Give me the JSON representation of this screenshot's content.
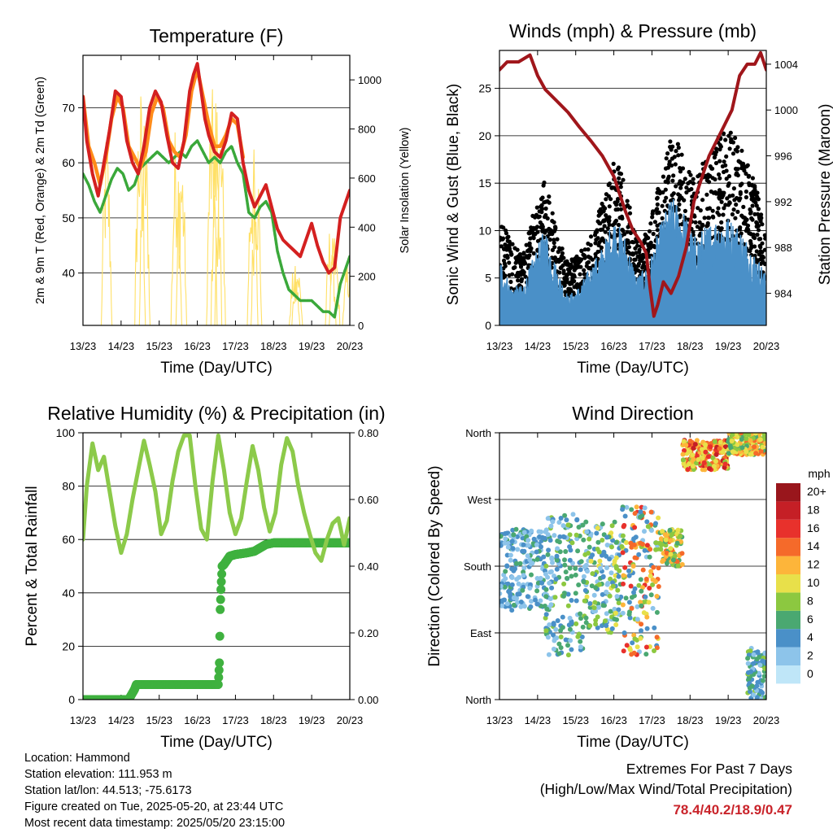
{
  "palette": {
    "t2m": "#d42020",
    "t9m": "#ff8c1a",
    "td": "#3aa83a",
    "solar": "#ffe066",
    "gust": "#000000",
    "wind": "#4a90c8",
    "pressure": "#a0161b",
    "rh": "#8cca4a",
    "precip": "#3fb13f"
  },
  "x_ticks": [
    "13/23",
    "14/23",
    "15/23",
    "16/23",
    "17/23",
    "18/23",
    "19/23",
    "20/23"
  ],
  "x_label": "Time (Day/UTC)",
  "chart_data": [
    {
      "type": "line",
      "id": "temperature",
      "title": "Temperature (F)",
      "xlabel": "Time (Day/UTC)",
      "ylabel": "2m & 9m T (Red, Orange) & 2m Td (Green)",
      "y2label": "Solar Insolation (Yellow)",
      "xlim": [
        0,
        7
      ],
      "ylim": [
        30.5,
        79.5
      ],
      "y2lim": [
        0,
        1100
      ],
      "yticks": [
        40,
        50,
        60,
        70
      ],
      "y2ticks": [
        0,
        200,
        400,
        600,
        800,
        1000
      ],
      "grid": true,
      "series": [
        {
          "name": "2m T",
          "color": "#d42020",
          "x": [
            0,
            0.1,
            0.25,
            0.4,
            0.55,
            0.7,
            0.85,
            1.0,
            1.15,
            1.3,
            1.45,
            1.6,
            1.75,
            1.9,
            2.05,
            2.2,
            2.35,
            2.5,
            2.65,
            2.8,
            2.9,
            3.0,
            3.1,
            3.2,
            3.3,
            3.45,
            3.6,
            3.75,
            3.9,
            4.05,
            4.2,
            4.35,
            4.5,
            4.65,
            4.8,
            4.95,
            5.1,
            5.25,
            5.4,
            5.55,
            5.7,
            5.85,
            6.0,
            6.15,
            6.3,
            6.45,
            6.6,
            6.75,
            6.9,
            7.0
          ],
          "y": [
            72,
            64,
            58,
            54,
            60,
            66,
            73,
            72,
            64,
            60,
            58,
            63,
            70,
            73,
            71,
            65,
            60,
            59,
            64,
            73,
            76,
            78,
            73,
            68,
            65,
            62,
            61,
            64,
            69,
            68,
            60,
            55,
            52,
            54,
            56,
            52,
            48,
            46,
            45,
            44,
            43,
            46,
            49,
            45,
            42,
            40,
            41,
            50,
            53,
            55
          ]
        },
        {
          "name": "9m T",
          "color": "#ff8c1a",
          "x": [
            0,
            0.15,
            0.3,
            0.45,
            0.6,
            0.75,
            0.9,
            1.05,
            1.2,
            1.35,
            1.5,
            1.65,
            1.8,
            1.95,
            2.1,
            2.25,
            2.4,
            2.55,
            2.7,
            2.85,
            3.0,
            3.15,
            3.3,
            3.45,
            3.6,
            3.75,
            3.9,
            4.05,
            4.2
          ],
          "y": [
            72,
            63,
            60,
            56,
            61,
            68,
            72,
            70,
            63,
            61,
            59,
            62,
            69,
            72,
            70,
            64,
            62,
            61,
            65,
            73,
            77,
            72,
            67,
            63,
            63,
            65,
            68,
            67,
            61
          ]
        },
        {
          "name": "2m Td",
          "color": "#3aa83a",
          "x": [
            0,
            0.15,
            0.3,
            0.45,
            0.6,
            0.75,
            0.9,
            1.05,
            1.2,
            1.35,
            1.5,
            1.65,
            1.8,
            1.95,
            2.1,
            2.25,
            2.4,
            2.55,
            2.7,
            2.85,
            3.0,
            3.15,
            3.3,
            3.45,
            3.6,
            3.75,
            3.9,
            4.05,
            4.2,
            4.35,
            4.5,
            4.65,
            4.8,
            4.95,
            5.1,
            5.25,
            5.4,
            5.55,
            5.7,
            5.85,
            6.0,
            6.15,
            6.3,
            6.45,
            6.6,
            6.75,
            6.9,
            7.0
          ],
          "y": [
            58,
            56,
            53,
            51,
            54,
            57,
            59,
            58,
            55,
            56,
            59,
            60,
            61,
            62,
            61,
            60,
            61,
            62,
            61,
            63,
            64,
            62,
            60,
            61,
            60,
            62,
            63,
            60,
            58,
            51,
            50,
            52,
            53,
            51,
            44,
            40,
            37,
            36,
            35,
            35,
            35,
            34,
            33,
            33,
            32,
            38,
            41,
            43
          ]
        },
        {
          "name": "Solar Insolation",
          "color": "#ffe066",
          "axis": "y2",
          "peaks_x": [
            0.62,
            1.5,
            1.62,
            2.45,
            2.58,
            3.38,
            3.5,
            3.6,
            4.45,
            4.55,
            5.55,
            5.62,
            6.5,
            6.6,
            6.95
          ],
          "peaks_y": [
            820,
            1000,
            900,
            870,
            780,
            980,
            1010,
            900,
            780,
            760,
            250,
            280,
            430,
            380,
            270
          ]
        }
      ]
    },
    {
      "type": "scatter",
      "id": "winds",
      "title": "Winds (mph) & Pressure (mb)",
      "xlabel": "Time (Day/UTC)",
      "ylabel": "Sonic Wind & Gust (Blue, Black)",
      "y2label": "Station Pressure (Maroon)",
      "xlim": [
        0,
        7
      ],
      "ylim": [
        0,
        29
      ],
      "y2lim": [
        981.2,
        1005.2
      ],
      "yticks": [
        0,
        5,
        10,
        15,
        20,
        25
      ],
      "y2ticks": [
        984,
        988,
        992,
        996,
        1000,
        1004
      ],
      "grid": true,
      "series": [
        {
          "name": "Gust",
          "color": "#000000",
          "envelope_x": [
            0,
            0.3,
            0.6,
            0.9,
            1.2,
            1.5,
            1.8,
            2.1,
            2.4,
            2.7,
            3.0,
            3.3,
            3.6,
            3.9,
            4.2,
            4.5,
            4.8,
            5.1,
            5.4,
            5.7,
            6.0,
            6.3,
            6.6,
            6.9,
            7.0
          ],
          "envelope_y": [
            12,
            8,
            7,
            11,
            14,
            9,
            6,
            7,
            9,
            12,
            16,
            14,
            8,
            9,
            14,
            18,
            17,
            14,
            16,
            18,
            19,
            18,
            15,
            11,
            9
          ]
        },
        {
          "name": "Sonic Wind",
          "color": "#4a90c8",
          "envelope_x": [
            0,
            0.3,
            0.6,
            0.9,
            1.2,
            1.5,
            1.8,
            2.1,
            2.4,
            2.7,
            3.0,
            3.3,
            3.6,
            3.9,
            4.2,
            4.5,
            4.8,
            5.1,
            5.4,
            5.7,
            6.0,
            6.3,
            6.6,
            6.9,
            7.0
          ],
          "envelope_y": [
            7,
            4,
            4,
            7,
            10,
            6,
            3,
            4,
            6,
            8,
            11,
            9,
            5,
            6,
            10,
            13,
            12,
            9,
            10,
            11,
            11,
            10,
            8,
            6,
            5
          ]
        },
        {
          "name": "Station Pressure",
          "color": "#a0161b",
          "axis": "y2",
          "x": [
            0,
            0.2,
            0.5,
            0.8,
            1.0,
            1.2,
            1.5,
            1.8,
            2.1,
            2.4,
            2.7,
            3.0,
            3.3,
            3.5,
            3.7,
            3.85,
            3.95,
            4.05,
            4.15,
            4.3,
            4.5,
            4.7,
            4.9,
            5.1,
            5.3,
            5.5,
            5.8,
            6.1,
            6.3,
            6.5,
            6.7,
            6.85,
            7.0
          ],
          "y": [
            1003.5,
            1004.2,
            1004.2,
            1004.8,
            1003,
            1001.8,
            1000.8,
            999.8,
            998.5,
            997.3,
            996,
            994.2,
            991.2,
            989.5,
            988.5,
            987.5,
            984.5,
            982,
            983,
            985,
            984,
            985.5,
            988,
            992,
            994,
            996,
            998,
            1000,
            1003,
            1004,
            1004,
            1005,
            1003.5
          ]
        }
      ]
    },
    {
      "type": "line",
      "id": "humidity",
      "title": "Relative Humidity (%) & Precipitation (in)",
      "xlabel": "Time (Day/UTC)",
      "ylabel": "Percent & Total Rainfall",
      "xlim": [
        0,
        7
      ],
      "ylim": [
        0,
        100
      ],
      "y2lim": [
        0,
        0.8
      ],
      "yticks": [
        0,
        20,
        40,
        60,
        80,
        100
      ],
      "y2ticks": [
        "0.00",
        "0.20",
        "0.40",
        "0.60",
        "0.80"
      ],
      "grid": true,
      "series": [
        {
          "name": "Relative Humidity",
          "color": "#8cca4a",
          "x": [
            0,
            0.1,
            0.25,
            0.4,
            0.55,
            0.7,
            0.85,
            1.0,
            1.15,
            1.3,
            1.45,
            1.6,
            1.75,
            1.9,
            2.05,
            2.2,
            2.35,
            2.5,
            2.65,
            2.8,
            2.95,
            3.1,
            3.25,
            3.4,
            3.55,
            3.7,
            3.85,
            4.0,
            4.15,
            4.3,
            4.45,
            4.6,
            4.75,
            4.9,
            5.05,
            5.2,
            5.35,
            5.5,
            5.65,
            5.8,
            5.95,
            6.1,
            6.25,
            6.4,
            6.55,
            6.7,
            6.85,
            7.0
          ],
          "y": [
            60,
            80,
            96,
            86,
            91,
            78,
            65,
            55,
            62,
            75,
            86,
            97,
            88,
            78,
            62,
            67,
            82,
            93,
            99,
            99,
            80,
            64,
            60,
            82,
            99,
            86,
            70,
            62,
            68,
            82,
            95,
            86,
            72,
            63,
            70,
            88,
            98,
            93,
            80,
            70,
            62,
            55,
            52,
            60,
            66,
            68,
            58,
            68
          ]
        },
        {
          "name": "Total Precipitation",
          "color": "#3fb13f",
          "axis": "y2",
          "x": [
            0,
            1.2,
            1.35,
            1.4,
            3.55,
            3.58,
            3.6,
            3.62,
            3.65,
            3.7,
            3.85,
            4.0,
            4.3,
            4.5,
            4.8,
            5.0,
            6.0,
            7.0
          ],
          "y": [
            0,
            0,
            0.03,
            0.045,
            0.045,
            0.11,
            0.27,
            0.33,
            0.4,
            0.405,
            0.43,
            0.435,
            0.44,
            0.445,
            0.465,
            0.47,
            0.47,
            0.47
          ]
        }
      ]
    },
    {
      "type": "scatter",
      "id": "wind_direction",
      "title": "Wind Direction",
      "xlabel": "Time (Day/UTC)",
      "ylabel": "Direction (Colored By Speed)",
      "xlim": [
        0,
        7
      ],
      "ylim": [
        0,
        360
      ],
      "yticks": [
        "North",
        "East",
        "South",
        "West",
        "North"
      ],
      "grid": true,
      "colorbar": {
        "title": "mph",
        "labels": [
          "0",
          "2",
          "4",
          "6",
          "8",
          "10",
          "12",
          "14",
          "16",
          "18",
          "20+"
        ],
        "colors": [
          "#bfe6f8",
          "#8dc4ea",
          "#4a90c8",
          "#4aa871",
          "#8cc840",
          "#e8e04a",
          "#fdb53a",
          "#f56a2a",
          "#e8312c",
          "#c51f26",
          "#99161c"
        ]
      },
      "clusters": [
        {
          "x": [
            0,
            1.2
          ],
          "dir": [
            120,
            230
          ],
          "speed": [
            1,
            6
          ]
        },
        {
          "x": [
            1.2,
            2.2
          ],
          "dir": [
            60,
            250
          ],
          "speed": [
            1,
            8
          ]
        },
        {
          "x": [
            2.2,
            3.2
          ],
          "dir": [
            90,
            240
          ],
          "speed": [
            1,
            10
          ]
        },
        {
          "x": [
            3.2,
            4.2
          ],
          "dir": [
            60,
            260
          ],
          "speed": [
            2,
            17
          ]
        },
        {
          "x": [
            4.2,
            4.8
          ],
          "dir": [
            180,
            230
          ],
          "speed": [
            6,
            14
          ]
        },
        {
          "x": [
            4.8,
            6.0
          ],
          "dir": [
            310,
            350
          ],
          "speed": [
            8,
            18
          ]
        },
        {
          "x": [
            6.0,
            7.0
          ],
          "dir": [
            330,
            360
          ],
          "speed": [
            6,
            14
          ]
        },
        {
          "x": [
            6.5,
            7.0
          ],
          "dir": [
            0,
            70
          ],
          "speed": [
            2,
            8
          ]
        }
      ]
    }
  ],
  "info": {
    "location": "Location: Hammond",
    "elevation": "Station elevation: 111.953 m",
    "latlon": "Station lat/lon: 44.513; -75.6173",
    "created": "Figure created on Tue, 2025-05-20, at 23:44 UTC",
    "recent": "Most recent data timestamp: 2025/05/20 23:15:00"
  },
  "extremes": {
    "title": "Extremes For Past 7 Days",
    "subtitle": "(High/Low/Max Wind/Total Precipitation)",
    "values": "78.4/40.2/18.9/0.47"
  }
}
